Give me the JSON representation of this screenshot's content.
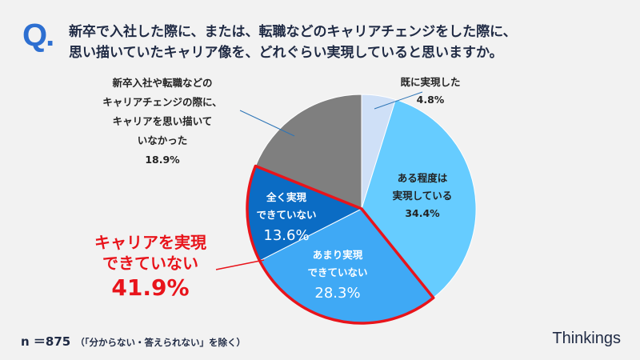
{
  "question": {
    "mark": "Q.",
    "lines": [
      "新卒で入社した際に、または、転職などのキャリアチェンジをした際に、",
      "思い描いていたキャリア像を、どれぐらい実現していると思いますか。"
    ]
  },
  "chart_data": {
    "type": "pie",
    "start": "top",
    "direction": "clockwise",
    "slices": [
      {
        "label": "既に実現した",
        "value": 4.8,
        "display": "4.8%",
        "color": "#cfe0f7"
      },
      {
        "label": "ある程度は実現している",
        "value": 34.4,
        "display": "34.4%",
        "color": "#66ccff"
      },
      {
        "label": "あまり実現できていない",
        "value": 28.3,
        "display": "28.3%",
        "color": "#3fa9f5"
      },
      {
        "label": "全く実現できていない",
        "value": 13.6,
        "display": "13.6%",
        "color": "#0b6cc4"
      },
      {
        "label": "新卒入社や転職などのキャリアチェンジの際に、キャリアを思い描いていなかった",
        "value": 18.9,
        "display": "18.9%",
        "color": "#7f7f7f"
      }
    ],
    "label_lines": [
      [
        "既に実現した"
      ],
      [
        "ある程度は",
        "実現している"
      ],
      [
        "あまり実現",
        "できていない"
      ],
      [
        "全く実現",
        "できていない"
      ],
      [
        "新卒入社や転職などの",
        "キャリアチェンジの際に、",
        "キャリアを思い描いて",
        "いなかった"
      ]
    ],
    "highlight": {
      "lines": [
        "キャリアを実現",
        "できていない"
      ],
      "value": "41.9%",
      "color": "#e8141b",
      "slices": [
        2,
        3
      ]
    }
  },
  "footer": {
    "n": "n ＝875",
    "note": "（「分からない・答えられない」を除く）",
    "brand": "Thinkings"
  }
}
